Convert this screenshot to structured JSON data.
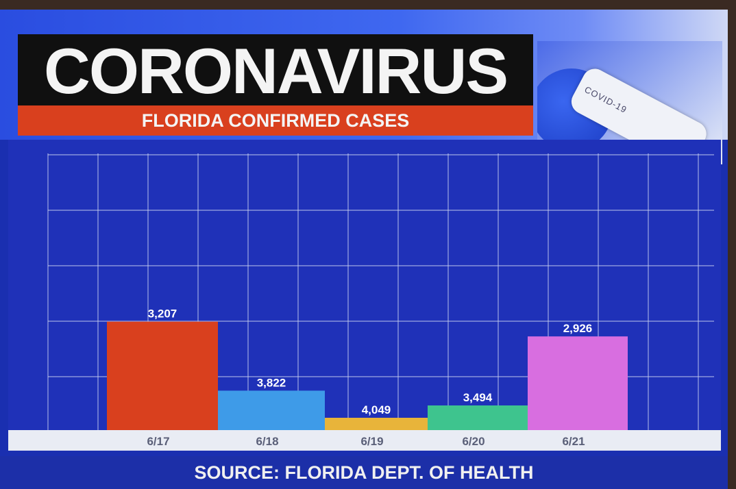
{
  "header": {
    "title": "CORONAVIRUS",
    "subtitle": "FLORIDA CONFIRMED CASES"
  },
  "photo": {
    "tube_label": "COVID-19"
  },
  "footer": {
    "source": "SOURCE: FLORIDA DEPT. OF HEALTH"
  },
  "colors": {
    "background": "#1a2fb0",
    "grid": "#c8d0f0",
    "title_block": "#101010",
    "subtitle_bar": "#d9401e"
  },
  "chart_data": {
    "type": "bar",
    "title": "",
    "xlabel": "",
    "ylabel": "",
    "categories": [
      "6/17",
      "6/18",
      "6/19",
      "6/20",
      "6/21"
    ],
    "value_labels": [
      "3,207",
      "3,822",
      "4,049",
      "3,494",
      "2,926"
    ],
    "bar_colors": [
      "#d9401e",
      "#3e9be8",
      "#e8b43a",
      "#3ec48e",
      "#d86ee0"
    ],
    "bar_heights_as_drawn": [
      0.44,
      0.16,
      0.05,
      0.1,
      0.38
    ],
    "grid": true,
    "legend": "none"
  }
}
